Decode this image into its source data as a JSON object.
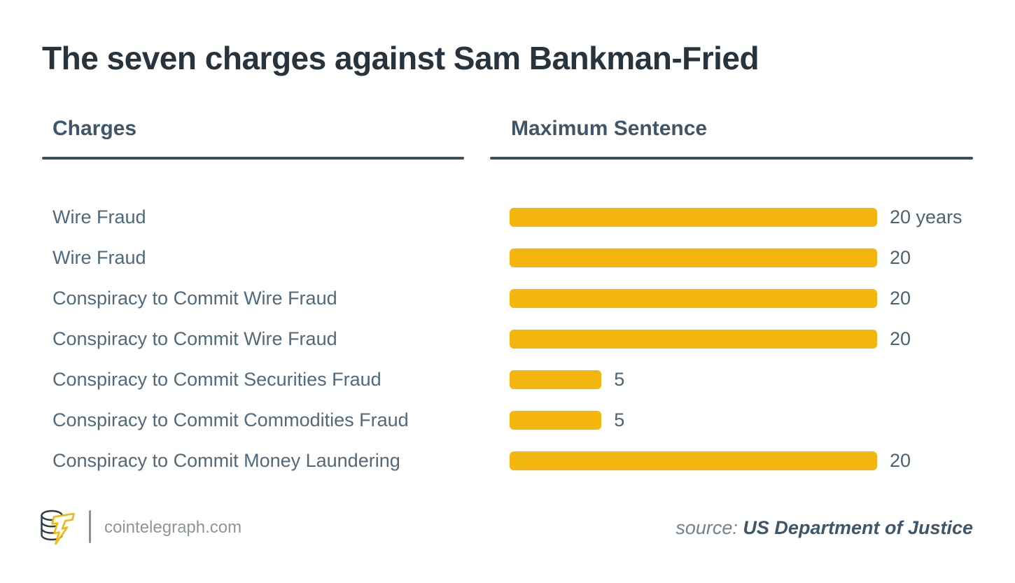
{
  "title": "The seven charges against Sam Bankman-Fried",
  "table": {
    "left_header": "Charges",
    "right_header": "Maximum Sentence"
  },
  "rows": [
    {
      "charge": "Wire Fraud",
      "years": 20,
      "value_label": "20 years"
    },
    {
      "charge": "Wire Fraud",
      "years": 20,
      "value_label": "20"
    },
    {
      "charge": "Conspiracy to Commit Wire Fraud",
      "years": 20,
      "value_label": "20"
    },
    {
      "charge": "Conspiracy to Commit Wire Fraud",
      "years": 20,
      "value_label": "20"
    },
    {
      "charge": "Conspiracy to Commit Securities Fraud",
      "years": 5,
      "value_label": "5"
    },
    {
      "charge": "Conspiracy to Commit Commodities Fraud",
      "years": 5,
      "value_label": "5"
    },
    {
      "charge": "Conspiracy to Commit Money Laundering",
      "years": 20,
      "value_label": "20"
    }
  ],
  "footer": {
    "site": "cointelegraph.com",
    "source_label": "source:",
    "source_value": "US Department of Justice"
  },
  "colors": {
    "bar": "#F2B60E",
    "title": "#27333D",
    "header": "#3E5668",
    "rule": "#3E4F5A",
    "charge_label": "#50697B",
    "value_label": "#4A6272",
    "footer_gray": "#8D959B"
  },
  "chart_data": {
    "type": "bar",
    "orientation": "horizontal",
    "title": "The seven charges against Sam Bankman-Fried",
    "columns": [
      "Charges",
      "Maximum Sentence"
    ],
    "categories": [
      "Wire Fraud",
      "Wire Fraud",
      "Conspiracy to Commit Wire Fraud",
      "Conspiracy to Commit Wire Fraud",
      "Conspiracy to Commit Securities Fraud",
      "Conspiracy to Commit Commodities Fraud",
      "Conspiracy to Commit Money Laundering"
    ],
    "values": [
      20,
      20,
      20,
      20,
      5,
      5,
      20
    ],
    "value_labels": [
      "20 years",
      "20",
      "20",
      "20",
      "5",
      "5",
      "20"
    ],
    "unit": "years",
    "xlim": [
      0,
      20
    ],
    "grid": false,
    "legend": false,
    "bar_color": "#F2B60E",
    "source": "US Department of Justice",
    "publisher": "cointelegraph.com"
  }
}
